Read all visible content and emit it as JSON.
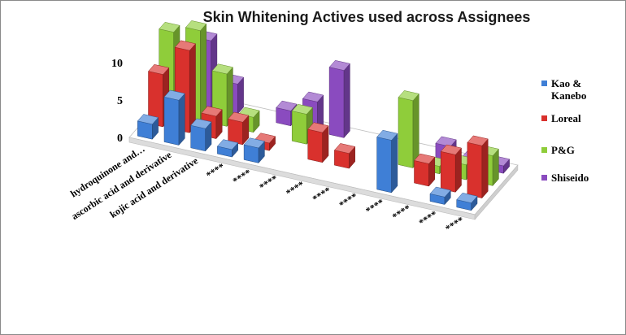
{
  "chart_data": {
    "type": "bar",
    "title": "Skin Whitening Actives  used across Assignees",
    "categories": [
      "hydroquinone and…",
      "ascorbic acid and derivative",
      "kojic acid and derivative",
      "****",
      "****",
      "****",
      "****",
      "****",
      "****",
      "****",
      "****",
      "****",
      "****"
    ],
    "series": [
      {
        "name": "Kao & Kanebo",
        "color": "#3f7fd6",
        "values": [
          2,
          6,
          3,
          1,
          2,
          0,
          0,
          0,
          0,
          7,
          0,
          1,
          1
        ]
      },
      {
        "name": "Loreal",
        "color": "#d9312d",
        "values": [
          7,
          11,
          3,
          3,
          1,
          0,
          4,
          2,
          0,
          0,
          3,
          5,
          7
        ]
      },
      {
        "name": "P&G",
        "color": "#8fcd3a",
        "values": [
          11,
          12,
          7,
          2,
          0,
          4,
          0,
          0,
          0,
          9,
          1,
          2,
          4
        ]
      },
      {
        "name": "Shiseido",
        "color": "#8a4bbf",
        "values": [
          3,
          9,
          4,
          0,
          2,
          4,
          9,
          0,
          0,
          0,
          2,
          1,
          1
        ]
      }
    ],
    "yticks": [
      "0",
      "5",
      "10"
    ],
    "ylim": [
      0,
      10
    ],
    "legend_position": "right"
  }
}
